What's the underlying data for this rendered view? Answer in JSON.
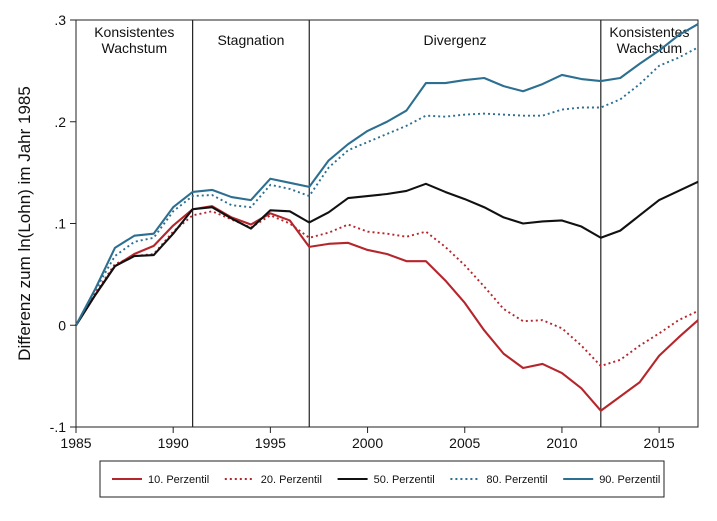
{
  "chart_data": {
    "type": "line",
    "title": "",
    "xlabel": "",
    "ylabel": "Differenz zum ln(Lohn) im Jahr 1985",
    "xlim": [
      1985,
      2017
    ],
    "ylim": [
      -0.1,
      0.3
    ],
    "xticks": [
      1985,
      1990,
      1995,
      2000,
      2005,
      2010,
      2015
    ],
    "yticks": [
      -0.1,
      0,
      0.1,
      0.2,
      0.3
    ],
    "ytick_labels": [
      "-.1",
      "0",
      ".1",
      ".2",
      ".3"
    ],
    "grid": false,
    "legend_position": "bottom",
    "x": [
      1985,
      1986,
      1987,
      1988,
      1989,
      1990,
      1991,
      1992,
      1993,
      1994,
      1995,
      1996,
      1997,
      1998,
      1999,
      2000,
      2001,
      2002,
      2003,
      2004,
      2005,
      2006,
      2007,
      2008,
      2009,
      2010,
      2011,
      2012,
      2013,
      2014,
      2015,
      2016,
      2017
    ],
    "series": [
      {
        "name": "10. Perzentil",
        "color": "#b5262c",
        "dash": "solid",
        "values": [
          0.0,
          0.03,
          0.058,
          0.07,
          0.078,
          0.098,
          0.114,
          0.117,
          0.106,
          0.099,
          0.11,
          0.103,
          0.077,
          0.08,
          0.081,
          0.074,
          0.07,
          0.063,
          0.063,
          0.044,
          0.022,
          -0.005,
          -0.028,
          -0.042,
          -0.038,
          -0.047,
          -0.062,
          -0.084,
          -0.07,
          -0.056,
          -0.03,
          -0.012,
          0.005
        ]
      },
      {
        "name": "20. Perzentil",
        "color": "#b5262c",
        "dash": "dotted",
        "values": [
          0.0,
          0.032,
          0.06,
          0.068,
          0.07,
          0.092,
          0.108,
          0.112,
          0.104,
          0.096,
          0.108,
          0.1,
          0.086,
          0.091,
          0.099,
          0.092,
          0.09,
          0.087,
          0.092,
          0.077,
          0.059,
          0.038,
          0.016,
          0.004,
          0.005,
          -0.003,
          -0.02,
          -0.04,
          -0.034,
          -0.02,
          -0.008,
          0.005,
          0.014
        ]
      },
      {
        "name": "50. Perzentil",
        "color": "#111111",
        "dash": "solid",
        "values": [
          0.0,
          0.03,
          0.058,
          0.068,
          0.069,
          0.09,
          0.114,
          0.116,
          0.105,
          0.095,
          0.113,
          0.112,
          0.101,
          0.111,
          0.125,
          0.127,
          0.129,
          0.132,
          0.139,
          0.131,
          0.124,
          0.116,
          0.106,
          0.1,
          0.102,
          0.103,
          0.097,
          0.086,
          0.093,
          0.108,
          0.123,
          0.132,
          0.141
        ]
      },
      {
        "name": "80. Perzentil",
        "color": "#2d6f91",
        "dash": "dotted",
        "values": [
          0.0,
          0.035,
          0.068,
          0.082,
          0.086,
          0.112,
          0.127,
          0.128,
          0.118,
          0.116,
          0.138,
          0.134,
          0.127,
          0.155,
          0.172,
          0.18,
          0.188,
          0.196,
          0.206,
          0.205,
          0.207,
          0.208,
          0.207,
          0.206,
          0.206,
          0.212,
          0.214,
          0.214,
          0.222,
          0.237,
          0.255,
          0.263,
          0.273
        ]
      },
      {
        "name": "90. Perzentil",
        "color": "#2d6f91",
        "dash": "solid",
        "values": [
          0.0,
          0.036,
          0.076,
          0.088,
          0.09,
          0.116,
          0.131,
          0.133,
          0.126,
          0.123,
          0.144,
          0.14,
          0.136,
          0.162,
          0.178,
          0.191,
          0.2,
          0.211,
          0.238,
          0.238,
          0.241,
          0.243,
          0.235,
          0.23,
          0.237,
          0.246,
          0.242,
          0.24,
          0.243,
          0.257,
          0.27,
          0.285,
          0.296
        ]
      }
    ],
    "vertical_lines": [
      1991,
      1997,
      2012
    ],
    "phases": [
      {
        "label": "Konsistentes\nWachstum",
        "from": 1985,
        "to": 1991
      },
      {
        "label": "Stagnation",
        "from": 1991,
        "to": 1997
      },
      {
        "label": "Divergenz",
        "from": 1997,
        "to": 2012
      },
      {
        "label": "Konsistentes\nWachstum",
        "from": 2012,
        "to": 2017
      }
    ]
  }
}
